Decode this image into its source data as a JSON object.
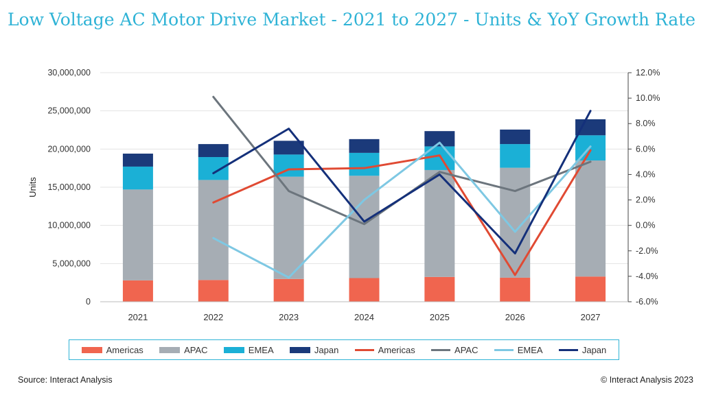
{
  "page": {
    "title": "Low Voltage AC Motor Drive Market - 2021 to 2027 - Units & YoY Growth Rate",
    "source": "Source: Interact Analysis",
    "copyright": "© Interact Analysis 2023"
  },
  "chart_data": {
    "type": "bar",
    "subtype": "stacked-bar-with-lines",
    "categories": [
      "2021",
      "2022",
      "2023",
      "2024",
      "2025",
      "2026",
      "2027"
    ],
    "ylabel": "Units",
    "ylim": [
      0,
      30000000
    ],
    "y_ticks": [
      "0",
      "5,000,000",
      "10,000,000",
      "15,000,000",
      "20,000,000",
      "25,000,000",
      "30,000,000"
    ],
    "y2lim": [
      -6,
      12
    ],
    "y2_ticks": [
      "-6.0%",
      "-4.0%",
      "-2.0%",
      "0.0%",
      "2.0%",
      "4.0%",
      "6.0%",
      "8.0%",
      "10.0%",
      "12.0%"
    ],
    "grid": true,
    "legend_position": "bottom",
    "bar_series": [
      {
        "name": "Americas",
        "color": "#f0654f",
        "values": [
          2800000,
          2850000,
          2980000,
          3100000,
          3250000,
          3150000,
          3300000
        ]
      },
      {
        "name": "APAC",
        "color": "#a6adb4",
        "values": [
          11900000,
          13100000,
          13400000,
          13400000,
          14000000,
          14400000,
          15200000
        ]
      },
      {
        "name": "EMEA",
        "color": "#1bb0d6",
        "values": [
          3000000,
          3000000,
          2900000,
          3000000,
          3100000,
          3100000,
          3300000
        ]
      },
      {
        "name": "Japan",
        "color": "#1b3a7a",
        "values": [
          1700000,
          1700000,
          1800000,
          1800000,
          2000000,
          1900000,
          2100000
        ]
      }
    ],
    "line_series": [
      {
        "name": "Americas",
        "color": "#e04a33",
        "values": [
          null,
          1.8,
          4.4,
          4.5,
          5.5,
          -3.9,
          5.9
        ]
      },
      {
        "name": "APAC",
        "color": "#6c757d",
        "values": [
          null,
          10.1,
          2.7,
          0.1,
          4.2,
          2.7,
          5.0
        ]
      },
      {
        "name": "EMEA",
        "color": "#7ec8e3",
        "values": [
          null,
          -1.0,
          -4.1,
          2.0,
          6.5,
          -0.5,
          6.2
        ]
      },
      {
        "name": "Japan",
        "color": "#14307a",
        "values": [
          null,
          4.1,
          7.6,
          0.3,
          4.0,
          -2.2,
          9.0
        ]
      }
    ]
  }
}
